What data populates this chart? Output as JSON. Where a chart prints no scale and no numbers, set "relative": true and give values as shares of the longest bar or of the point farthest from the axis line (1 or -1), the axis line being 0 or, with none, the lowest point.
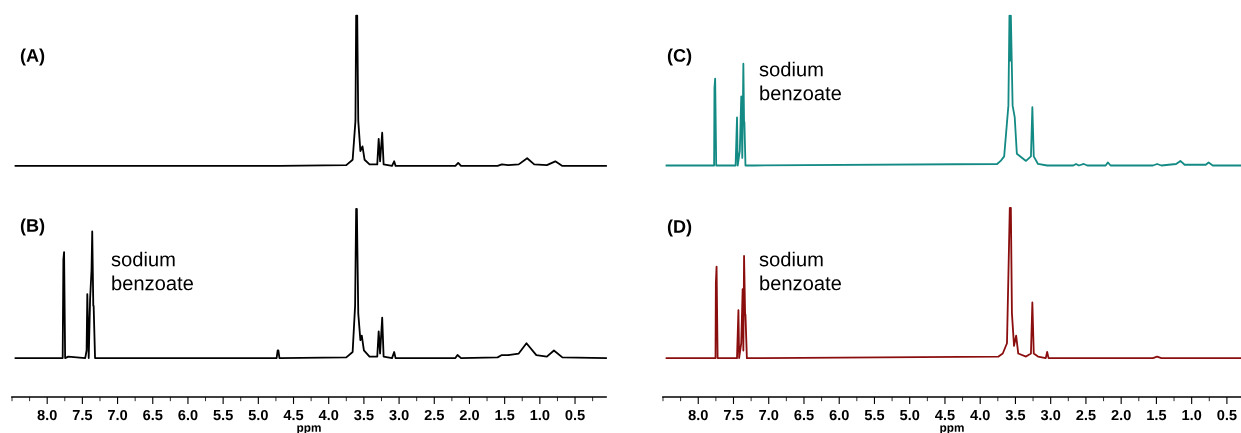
{
  "chart_data": [
    {
      "type": "line",
      "relative": true,
      "xlim": [
        8.5,
        0.06
      ],
      "xlabel": "ppm",
      "xticks": [
        {
          "value": 8,
          "label": "8.0"
        },
        7.5,
        {
          "value": 7,
          "label": "7.0"
        },
        6.5,
        {
          "value": 6,
          "label": "6.0"
        },
        5.5,
        {
          "value": 5,
          "label": "5.0"
        },
        4.5,
        {
          "value": 4,
          "label": "4.0"
        },
        3.5,
        {
          "value": 3,
          "label": "3.0"
        },
        2.5,
        {
          "value": 2,
          "label": "2.0"
        },
        1.5,
        {
          "value": 1,
          "label": "1.0"
        },
        0.5
      ],
      "annotations": [
        "(A)",
        "(B)",
        "sodium\nbenzoate"
      ],
      "series": [
        {
          "color": "#000000",
          "x": [
            8.45,
            4.7,
            3.75,
            3.66,
            3.62,
            3.61,
            3.595,
            3.58,
            3.55,
            3.52,
            3.49,
            3.42,
            3.31,
            3.29,
            3.27,
            3.24,
            3.22,
            3.1,
            3.07,
            3.05,
            2.2,
            2.16,
            2.12,
            1.6,
            1.54,
            1.45,
            1.3,
            1.18,
            1.08,
            0.9,
            0.78,
            0.68,
            0.06
          ],
          "values": [
            0.606,
            0.606,
            0.608,
            0.622,
            0.724,
            1,
            1,
            0.724,
            0.645,
            0.657,
            0.622,
            0.61,
            0.61,
            0.677,
            0.618,
            0.693,
            0.61,
            0.606,
            0.618,
            0.606,
            0.606,
            0.614,
            0.606,
            0.606,
            0.61,
            0.608,
            0.61,
            0.626,
            0.61,
            0.608,
            0.618,
            0.606,
            0.606
          ]
        },
        {
          "color": "#000000",
          "x": [
            8.45,
            7.82,
            7.78,
            7.77,
            7.76,
            7.745,
            7.7,
            7.46,
            7.44,
            7.43,
            7.41,
            7.39,
            7.37,
            7.36,
            7.345,
            7.34,
            7.32,
            7.2,
            4.74,
            4.725,
            4.72,
            4.715,
            4.7,
            3.75,
            3.66,
            3.625,
            3.61,
            3.6,
            3.58,
            3.55,
            3.53,
            3.5,
            3.42,
            3.31,
            3.29,
            3.27,
            3.24,
            3.22,
            3.1,
            3.07,
            3.05,
            2.2,
            2.17,
            2.12,
            1.6,
            1.54,
            1.45,
            1.3,
            1.19,
            1.05,
            0.9,
            0.8,
            0.68,
            0.06
          ],
          "values": [
            0.102,
            0.102,
            0.102,
            0.36,
            0.38,
            0.102,
            0.106,
            0.102,
            0.122,
            0.27,
            0.102,
            0.258,
            0.333,
            0.434,
            0.239,
            0.239,
            0.102,
            0.102,
            0.102,
            0.122,
            0.122,
            0.122,
            0.102,
            0.104,
            0.118,
            0.239,
            0.493,
            0.493,
            0.219,
            0.149,
            0.161,
            0.122,
            0.106,
            0.106,
            0.172,
            0.114,
            0.208,
            0.106,
            0.102,
            0.118,
            0.102,
            0.102,
            0.11,
            0.102,
            0.104,
            0.11,
            0.11,
            0.114,
            0.141,
            0.11,
            0.106,
            0.122,
            0.104,
            0.102
          ]
        }
      ]
    },
    {
      "type": "line",
      "relative": true,
      "xlim": [
        8.5,
        0.3
      ],
      "xlabel": "ppm",
      "xticks": [
        {
          "value": 8,
          "label": "8.0"
        },
        7.5,
        {
          "value": 7,
          "label": "7.0"
        },
        6.5,
        {
          "value": 6,
          "label": "6.0"
        },
        5.5,
        {
          "value": 5,
          "label": "5.0"
        },
        4.5,
        {
          "value": 4,
          "label": "4.0"
        },
        3.5,
        {
          "value": 3,
          "label": "3.0"
        },
        2.5,
        {
          "value": 2,
          "label": "2.0"
        },
        1.5,
        {
          "value": 1,
          "label": "1.0"
        },
        0.5
      ],
      "annotations": [
        "(C)",
        "sodium\nbenzoate",
        "(D)",
        "sodium\nbenzoate"
      ],
      "series": [
        {
          "color": "#138a84",
          "x": [
            8.45,
            7.8,
            7.775,
            7.77,
            7.76,
            7.745,
            7.7,
            7.47,
            7.45,
            7.44,
            7.41,
            7.39,
            7.375,
            7.36,
            7.35,
            7.345,
            7.33,
            7.2,
            3.76,
            3.71,
            3.66,
            3.6,
            3.585,
            3.575,
            3.565,
            3.54,
            3.51,
            3.48,
            3.35,
            3.28,
            3.26,
            3.24,
            3.18,
            3.05,
            2.68,
            2.64,
            2.6,
            2.53,
            2.48,
            2.22,
            2.19,
            2.15,
            1.55,
            1.49,
            1.43,
            1.22,
            1.16,
            1.1,
            0.8,
            0.76,
            0.7,
            0.3
          ],
          "values": [
            0.607,
            0.607,
            0.607,
            0.811,
            0.835,
            0.607,
            0.607,
            0.607,
            0.733,
            0.607,
            0.646,
            0.788,
            0.627,
            0.874,
            0.721,
            0.721,
            0.607,
            0.607,
            0.611,
            0.619,
            0.631,
            0.764,
            1,
            0.882,
            1,
            0.764,
            0.733,
            0.638,
            0.619,
            0.631,
            0.76,
            0.631,
            0.611,
            0.607,
            0.607,
            0.611,
            0.607,
            0.611,
            0.607,
            0.607,
            0.615,
            0.607,
            0.607,
            0.611,
            0.607,
            0.611,
            0.619,
            0.609,
            0.609,
            0.615,
            0.607,
            0.607
          ]
        },
        {
          "color": "#8b0e0e",
          "x": [
            8.45,
            7.78,
            7.755,
            7.75,
            7.74,
            7.725,
            7.7,
            7.45,
            7.43,
            7.42,
            7.39,
            7.37,
            7.36,
            7.35,
            7.335,
            7.33,
            7.31,
            7.2,
            3.74,
            3.68,
            3.62,
            3.58,
            3.565,
            3.55,
            3.52,
            3.49,
            3.46,
            3.35,
            3.28,
            3.26,
            3.24,
            3.18,
            3.07,
            3.05,
            3.03,
            1.55,
            1.49,
            1.43,
            0.3
          ],
          "values": [
            0.102,
            0.102,
            0.102,
            0.299,
            0.342,
            0.102,
            0.102,
            0.102,
            0.228,
            0.102,
            0.141,
            0.283,
            0.122,
            0.37,
            0.216,
            0.216,
            0.102,
            0.102,
            0.106,
            0.114,
            0.141,
            0.496,
            0.496,
            0.22,
            0.134,
            0.161,
            0.114,
            0.106,
            0.114,
            0.248,
            0.114,
            0.106,
            0.102,
            0.118,
            0.102,
            0.102,
            0.106,
            0.102,
            0.102
          ]
        }
      ]
    }
  ]
}
